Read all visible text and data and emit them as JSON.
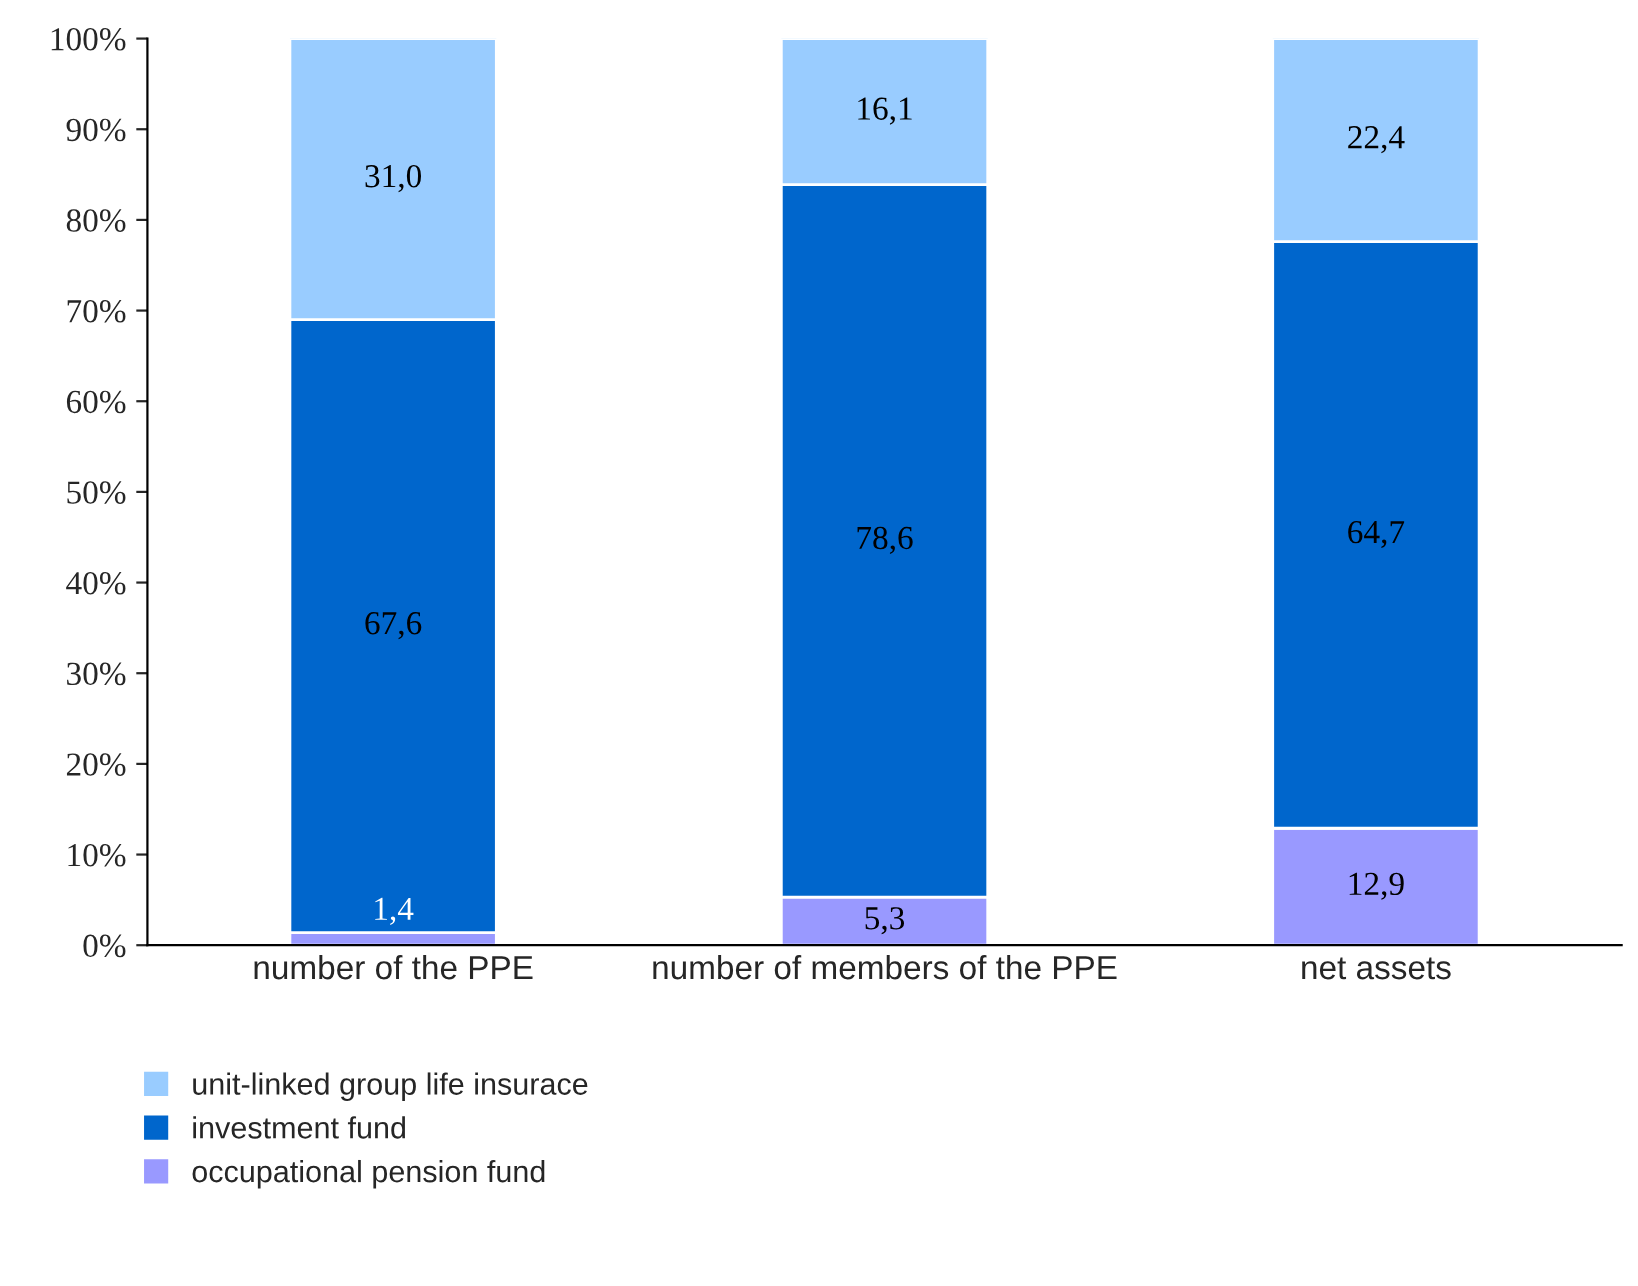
{
  "chart_data": {
    "type": "bar",
    "stacked": true,
    "categories": [
      "number of the PPE",
      "number of members of the PPE",
      "net assets"
    ],
    "series": [
      {
        "name": "occupational pension fund",
        "color": "#9999ff",
        "values": [
          1.4,
          5.3,
          12.9
        ],
        "value_labels": [
          "1,4",
          "5,3",
          "12,9"
        ]
      },
      {
        "name": "investment fund",
        "color": "#0066cc",
        "values": [
          67.6,
          78.6,
          64.7
        ],
        "value_labels": [
          "67,6",
          "78,6",
          "64,7"
        ]
      },
      {
        "name": "unit-linked group life insurace",
        "color": "#99ccff",
        "values": [
          31.0,
          16.1,
          22.4
        ],
        "value_labels": [
          "31,0",
          "16,1",
          "22,4"
        ]
      }
    ],
    "ylim": [
      0,
      100
    ],
    "yticks": [
      {
        "value": 0,
        "label": "0%"
      },
      {
        "value": 10,
        "label": "10%"
      },
      {
        "value": 20,
        "label": "20%"
      },
      {
        "value": 30,
        "label": "30%"
      },
      {
        "value": 40,
        "label": "40%"
      },
      {
        "value": 50,
        "label": "50%"
      },
      {
        "value": 60,
        "label": "60%"
      },
      {
        "value": 70,
        "label": "70%"
      },
      {
        "value": 80,
        "label": "80%"
      },
      {
        "value": 90,
        "label": "90%"
      },
      {
        "value": 100,
        "label": "100%"
      }
    ],
    "grid": false,
    "legend": "bottom"
  }
}
